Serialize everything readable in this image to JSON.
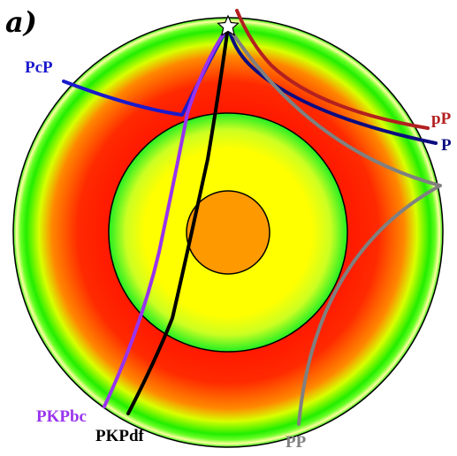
{
  "figure": {
    "panel_label": "a)"
  },
  "colors": {
    "mantle_outer": "#ffffa0",
    "mantle_green": "#22ee00",
    "mantle_red": "#ff1800",
    "outer_core_green": "#22ee22",
    "outer_core_yellow": "#ffff00",
    "inner_core": "#ff9900",
    "source_star": "#ffffff"
  },
  "rays": [
    {
      "id": "PcP",
      "label": "PcP",
      "color": "#1a1acc"
    },
    {
      "id": "pP",
      "label": "pP",
      "color": "#b32020"
    },
    {
      "id": "P",
      "label": "P",
      "color": "#0c0c80"
    },
    {
      "id": "PP",
      "label": "PP",
      "color": "#808080"
    },
    {
      "id": "PKPbc",
      "label": "PKPbc",
      "color": "#9933ee"
    },
    {
      "id": "PKPdf",
      "label": "PKPdf",
      "color": "#000000"
    }
  ]
}
